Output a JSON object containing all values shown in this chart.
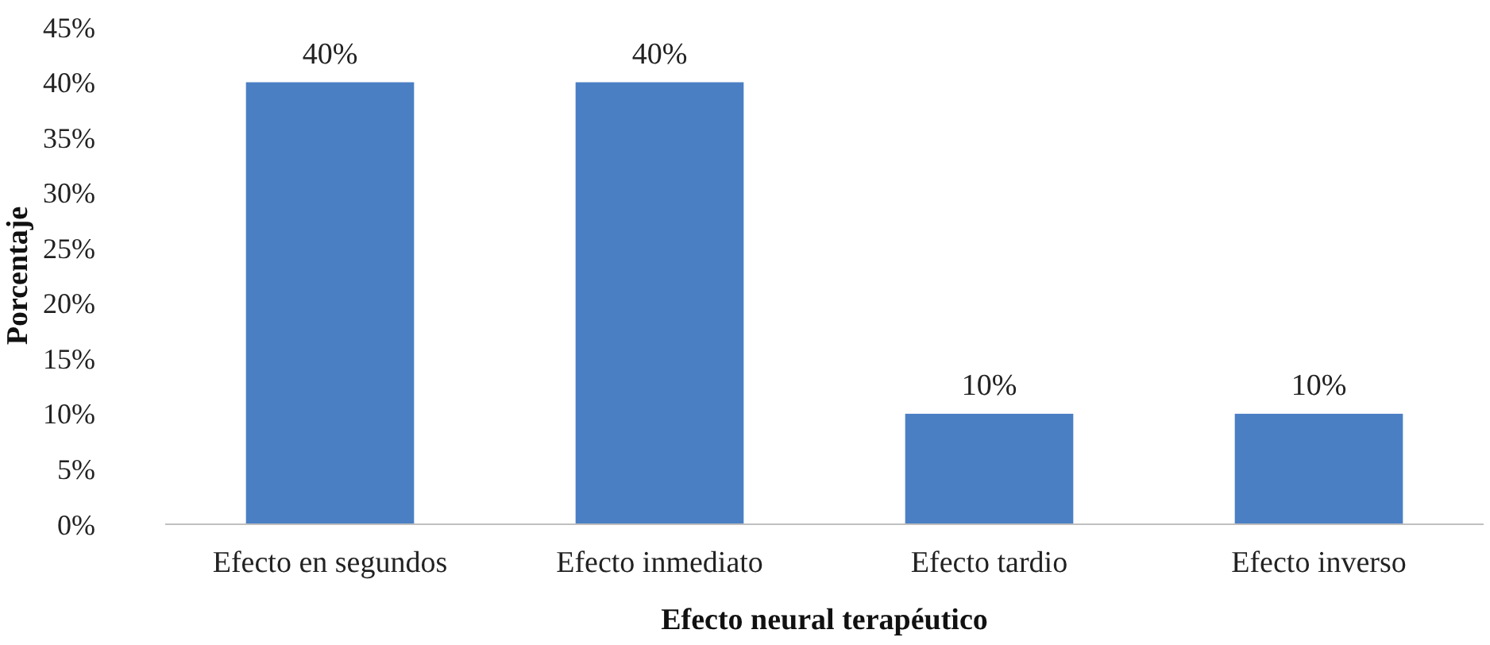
{
  "chart_data": {
    "type": "bar",
    "xlabel": "Efecto neural terapéutico",
    "ylabel": "Porcentaje",
    "categories": [
      "Efecto en segundos",
      "Efecto inmediato",
      "Efecto tardio",
      "Efecto inverso"
    ],
    "values": [
      40,
      40,
      10,
      10
    ],
    "color": "#4a7fc4",
    "value_labels": [
      "40%",
      "40%",
      "10%",
      "10%"
    ],
    "ylim": [
      0,
      45
    ],
    "yticks": [
      {
        "value": 0,
        "label": "0%"
      },
      {
        "value": 5,
        "label": "5%"
      },
      {
        "value": 10,
        "label": "10%"
      },
      {
        "value": 15,
        "label": "15%"
      },
      {
        "value": 20,
        "label": "20%"
      },
      {
        "value": 25,
        "label": "25%"
      },
      {
        "value": 30,
        "label": "30%"
      },
      {
        "value": 35,
        "label": "35%"
      },
      {
        "value": 40,
        "label": "40%"
      },
      {
        "value": 45,
        "label": "45%"
      }
    ],
    "grid": false
  }
}
